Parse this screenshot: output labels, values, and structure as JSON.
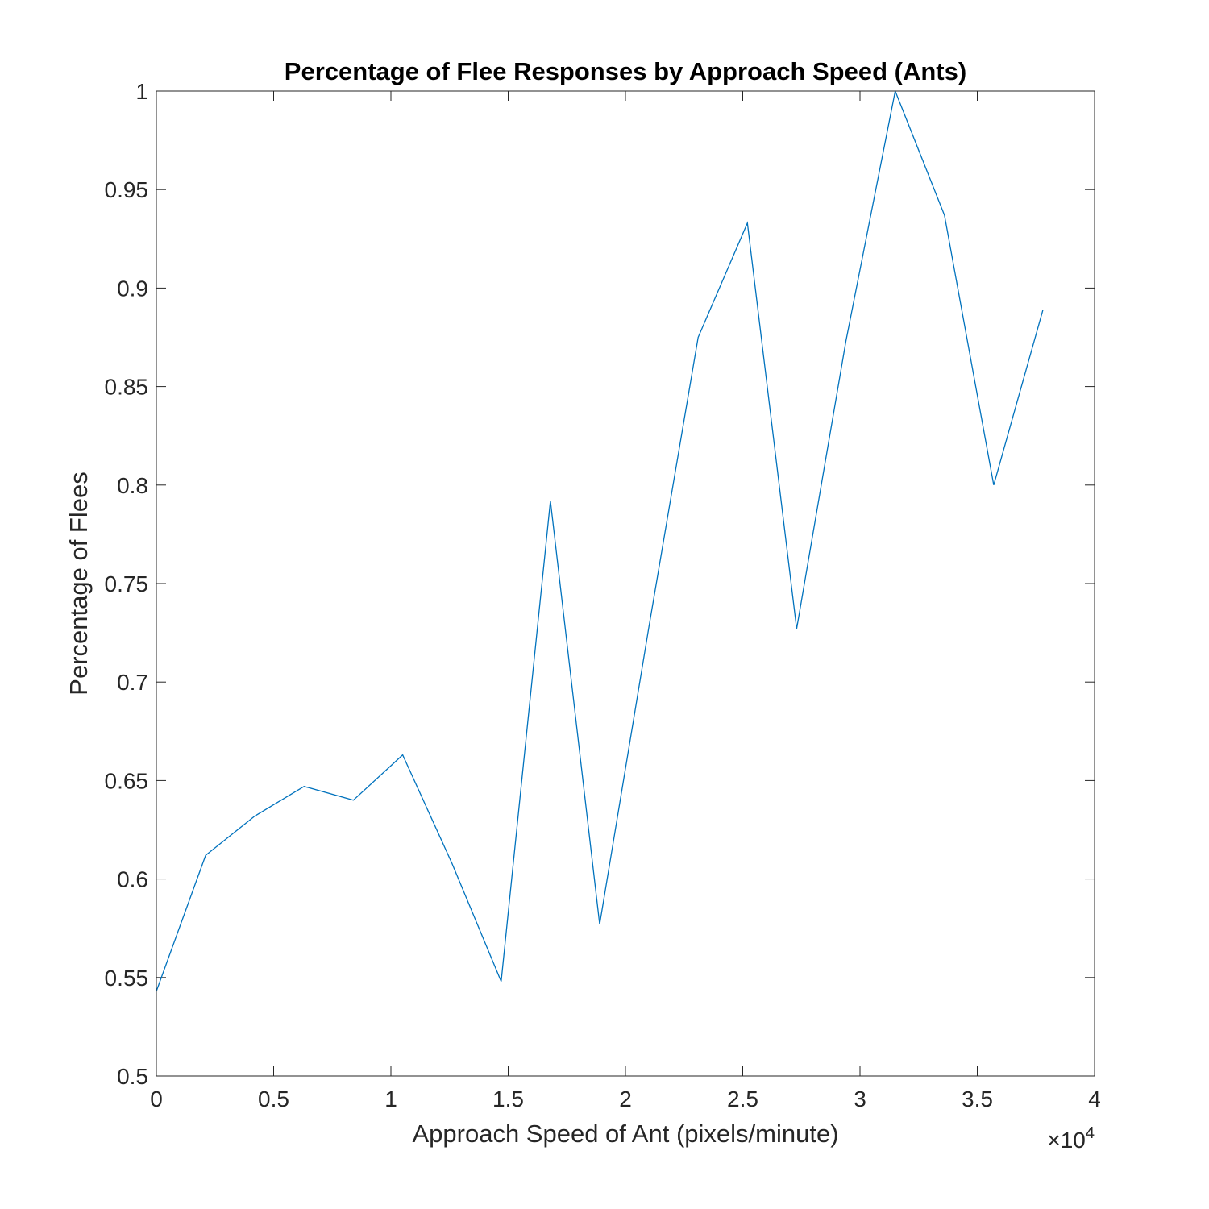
{
  "chart_data": {
    "type": "line",
    "title": "Percentage of Flee Responses by Approach Speed (Ants)",
    "xlabel": "Approach Speed of Ant (pixels/minute)",
    "ylabel": "Percentage of Flees",
    "xlim": [
      0,
      40000
    ],
    "ylim": [
      0.5,
      1
    ],
    "x_ticks": [
      0,
      5000,
      10000,
      15000,
      20000,
      25000,
      30000,
      35000,
      40000
    ],
    "x_tick_labels": [
      "0",
      "0.5",
      "1",
      "1.5",
      "2",
      "2.5",
      "3",
      "3.5",
      "4"
    ],
    "x_exponent_label": {
      "base": "×10",
      "exp": "4"
    },
    "y_ticks": [
      0.5,
      0.55,
      0.6,
      0.65,
      0.7,
      0.75,
      0.8,
      0.85,
      0.9,
      0.95,
      1
    ],
    "y_tick_labels": [
      "0.5",
      "0.55",
      "0.6",
      "0.65",
      "0.7",
      "0.75",
      "0.8",
      "0.85",
      "0.9",
      "0.95",
      "1"
    ],
    "grid": false,
    "line_color": "#0072BD",
    "axis_color": "#262626",
    "series": [
      {
        "x": [
          0,
          2100,
          4200,
          6300,
          8400,
          10500,
          12600,
          14700,
          16800,
          18900,
          21000,
          23100,
          25200,
          27300,
          29400,
          31500,
          33600,
          35700,
          37800
        ],
        "values": [
          0.543,
          0.612,
          0.632,
          0.647,
          0.64,
          0.663,
          0.608,
          0.548,
          0.792,
          0.577,
          0.728,
          0.875,
          0.933,
          0.727,
          0.873,
          1.0,
          0.937,
          0.8,
          0.889
        ]
      }
    ]
  }
}
